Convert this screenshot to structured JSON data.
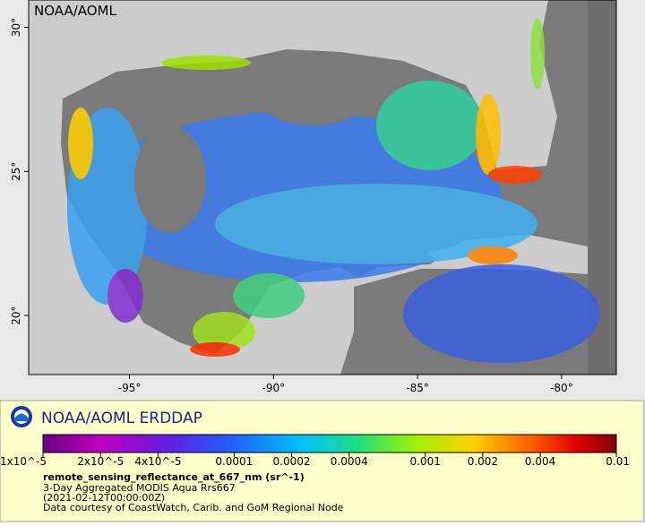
{
  "map": {
    "corner_label": "NOAA/AOML",
    "xlim": [
      -98.5,
      -78.1
    ],
    "ylim": [
      17.95,
      30.95
    ],
    "xticks": [
      {
        "value": -95,
        "label": "-95°"
      },
      {
        "value": -90,
        "label": "-90°"
      },
      {
        "value": -85,
        "label": "-85°"
      },
      {
        "value": -80,
        "label": "-80°"
      }
    ],
    "yticks": [
      {
        "value": 20,
        "label": "20°"
      },
      {
        "value": 25,
        "label": "25°"
      },
      {
        "value": 30,
        "label": "30°"
      }
    ]
  },
  "legend": {
    "brand": "NOAA/AOML ERDDAP",
    "colorbar": {
      "scale": "log",
      "lim": [
        1e-05,
        0.01
      ],
      "ticks": [
        {
          "value": 1e-05,
          "label": "1x10^-5"
        },
        {
          "value": 2e-05,
          "label": "2x10^-5"
        },
        {
          "value": 4e-05,
          "label": "4x10^-5"
        },
        {
          "value": 0.0001,
          "label": "0.0001"
        },
        {
          "value": 0.0002,
          "label": "0.0002"
        },
        {
          "value": 0.0004,
          "label": "0.0004"
        },
        {
          "value": 0.001,
          "label": "0.001"
        },
        {
          "value": 0.002,
          "label": "0.002"
        },
        {
          "value": 0.004,
          "label": "0.004"
        },
        {
          "value": 0.01,
          "label": "0.01"
        }
      ]
    },
    "variable": "remote_sensing_reflectance_at_667_nm (sr^-1)",
    "lines": [
      "3-Day Aggregated MODIS Aqua Rrs667",
      "(2021-02-12T00:00:00Z)",
      "Data courtesy of CoastWatch, Carib. and GoM Regional Node"
    ]
  }
}
